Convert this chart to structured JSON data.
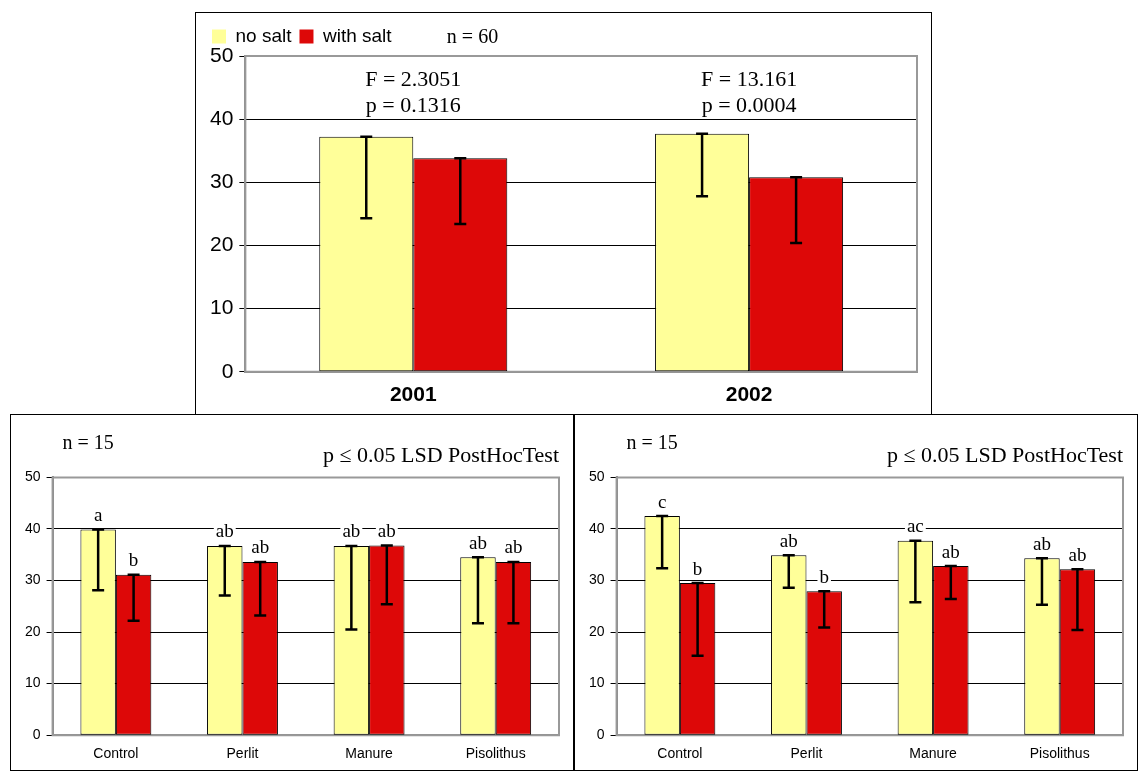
{
  "chart_data": [
    {
      "type": "bar",
      "categories": [
        "2001",
        "2002"
      ],
      "ylim": [
        0,
        50
      ],
      "yticks": [
        0,
        10,
        20,
        30,
        40,
        50
      ],
      "grid": "y",
      "legend": "top left",
      "series": [
        {
          "name": "no salt",
          "color": "#ffff99",
          "values": [
            37.2,
            37.7
          ],
          "errors": [
            [
              24.3,
              37.2
            ],
            [
              27.8,
              37.7
            ]
          ]
        },
        {
          "name": "with salt",
          "color": "#dd0808",
          "values": [
            33.8,
            30.8
          ],
          "errors": [
            [
              23.4,
              33.8
            ],
            [
              20.4,
              30.8
            ]
          ]
        }
      ],
      "annotations": [
        "n = 60",
        "F = 2.3051\np = 0.1316",
        "F = 13.161\np = 0.0004"
      ]
    },
    {
      "type": "bar",
      "title": "p ≤ 0.05 LSD PostHocTest",
      "categories": [
        "Control",
        "Perlit",
        "Manure",
        "Pisolithus"
      ],
      "ylim": [
        0,
        50
      ],
      "yticks": [
        0,
        10,
        20,
        30,
        40,
        50
      ],
      "grid": "y",
      "series": [
        {
          "color": "#ffff99",
          "values": [
            39.9,
            36.7,
            36.7,
            34.5
          ],
          "errors": [
            [
              28.1,
              39.9
            ],
            [
              27.1,
              36.7
            ],
            [
              20.5,
              36.7
            ],
            [
              21.7,
              34.5
            ]
          ],
          "value_labels": [
            "a",
            "ab",
            "ab",
            "ab"
          ]
        },
        {
          "color": "#dd0808",
          "values": [
            31.1,
            33.6,
            36.8,
            33.6
          ],
          "errors": [
            [
              22.2,
              31.1
            ],
            [
              23.2,
              33.6
            ],
            [
              25.4,
              36.8
            ],
            [
              21.7,
              33.6
            ]
          ],
          "value_labels": [
            "b",
            "ab",
            "ab",
            "ab"
          ]
        }
      ],
      "annotations": [
        "n = 15"
      ]
    },
    {
      "type": "bar",
      "title": "p ≤ 0.05 LSD PostHocTest",
      "categories": [
        "Control",
        "Perlit",
        "Manure",
        "Pisolithus"
      ],
      "ylim": [
        0,
        50
      ],
      "yticks": [
        0,
        10,
        20,
        30,
        40,
        50
      ],
      "grid": "y",
      "series": [
        {
          "color": "#ffff99",
          "values": [
            42.5,
            34.9,
            37.7,
            34.3
          ],
          "errors": [
            [
              32.4,
              42.5
            ],
            [
              28.6,
              34.9
            ],
            [
              25.8,
              37.7
            ],
            [
              25.3,
              34.3
            ]
          ],
          "value_labels": [
            "c",
            "ab",
            "ac",
            "ab"
          ]
        },
        {
          "color": "#dd0808",
          "values": [
            29.5,
            27.9,
            32.8,
            32.2
          ],
          "errors": [
            [
              15.4,
              29.5
            ],
            [
              20.9,
              27.9
            ],
            [
              26.4,
              32.8
            ],
            [
              20.4,
              32.2
            ]
          ],
          "value_labels": [
            "b",
            "b",
            "ab",
            "ab"
          ]
        }
      ],
      "annotations": [
        "n = 15"
      ]
    }
  ]
}
